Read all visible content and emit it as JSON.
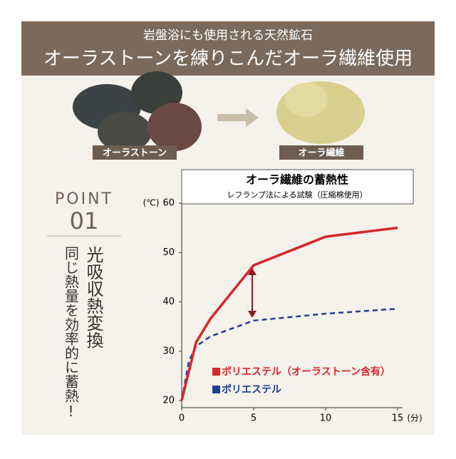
{
  "header": {
    "subtitle": "岩盤浴にも使用される天然鉱石",
    "title": "オーラストーンを練りこんだオーラ繊維使用"
  },
  "images": {
    "left_label": "オーラストーン",
    "right_label": "オーラ繊維"
  },
  "point": {
    "label": "POINT",
    "number": "01",
    "heading": "光吸収熱変換",
    "text": "同じ熱量を効率的に蓄熱!"
  },
  "chart_data": {
    "type": "line",
    "title": "オーラ繊維の蓄熱性",
    "subtitle": "レフランプ法による試験（圧縮棉使用）",
    "y_unit": "(℃)",
    "x_unit": "(分)",
    "xlim": [
      0,
      15
    ],
    "xticks": [
      0,
      5,
      10,
      15
    ],
    "ylim": [
      20,
      60
    ],
    "yticks": [
      20,
      30,
      40,
      50,
      60
    ],
    "series": [
      {
        "name": "ポリエステル（オーラストーン含有）",
        "color": "#d8262b",
        "dashed": false,
        "x": [
          0,
          1,
          2,
          5,
          10,
          15
        ],
        "values": [
          20,
          31.8,
          36.6,
          47.4,
          53.2,
          55
        ]
      },
      {
        "name": "ポリエステル",
        "color": "#1f3f8f",
        "dashed": true,
        "x": [
          0,
          0.5,
          1,
          2,
          5,
          10,
          15
        ],
        "values": [
          20,
          28,
          31,
          33,
          36.2,
          37.6,
          38.6
        ]
      }
    ]
  }
}
